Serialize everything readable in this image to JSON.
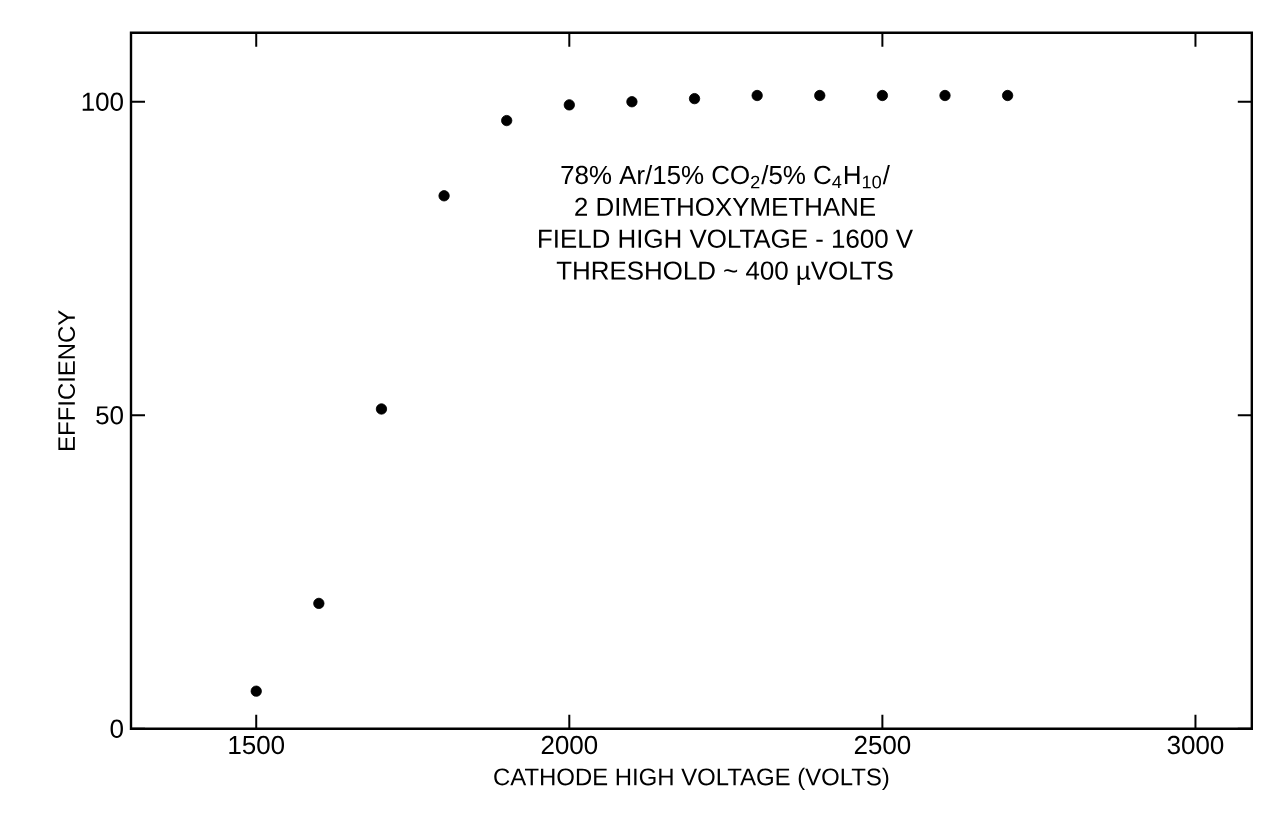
{
  "chart_data": {
    "type": "scatter",
    "xlabel": "CATHODE HIGH VOLTAGE (VOLTS)",
    "ylabel": "EFFICIENCY",
    "x": [
      1500,
      1600,
      1700,
      1800,
      1900,
      2000,
      2100,
      2200,
      2300,
      2400,
      2500,
      2600,
      2700
    ],
    "values": [
      6,
      20,
      51,
      85,
      97,
      99.5,
      100,
      100.5,
      101,
      101,
      101,
      101,
      101
    ],
    "color": "#000000",
    "marker": "circle",
    "xlim": [
      1300,
      3090
    ],
    "ylim": [
      0,
      111
    ],
    "xticks": [
      1500,
      2000,
      2500,
      3000
    ],
    "yticks": [
      0,
      50,
      100
    ],
    "annotations": [
      "78% Ar/15% CO$_{2}$/5% C$_{4}$H$_{10}$/",
      "2 DIMETHOXYMETHANE",
      "FIELD HIGH VOLTAGE - 1600 V",
      "THRESHOLD ~ 400 µVOLTS"
    ]
  }
}
